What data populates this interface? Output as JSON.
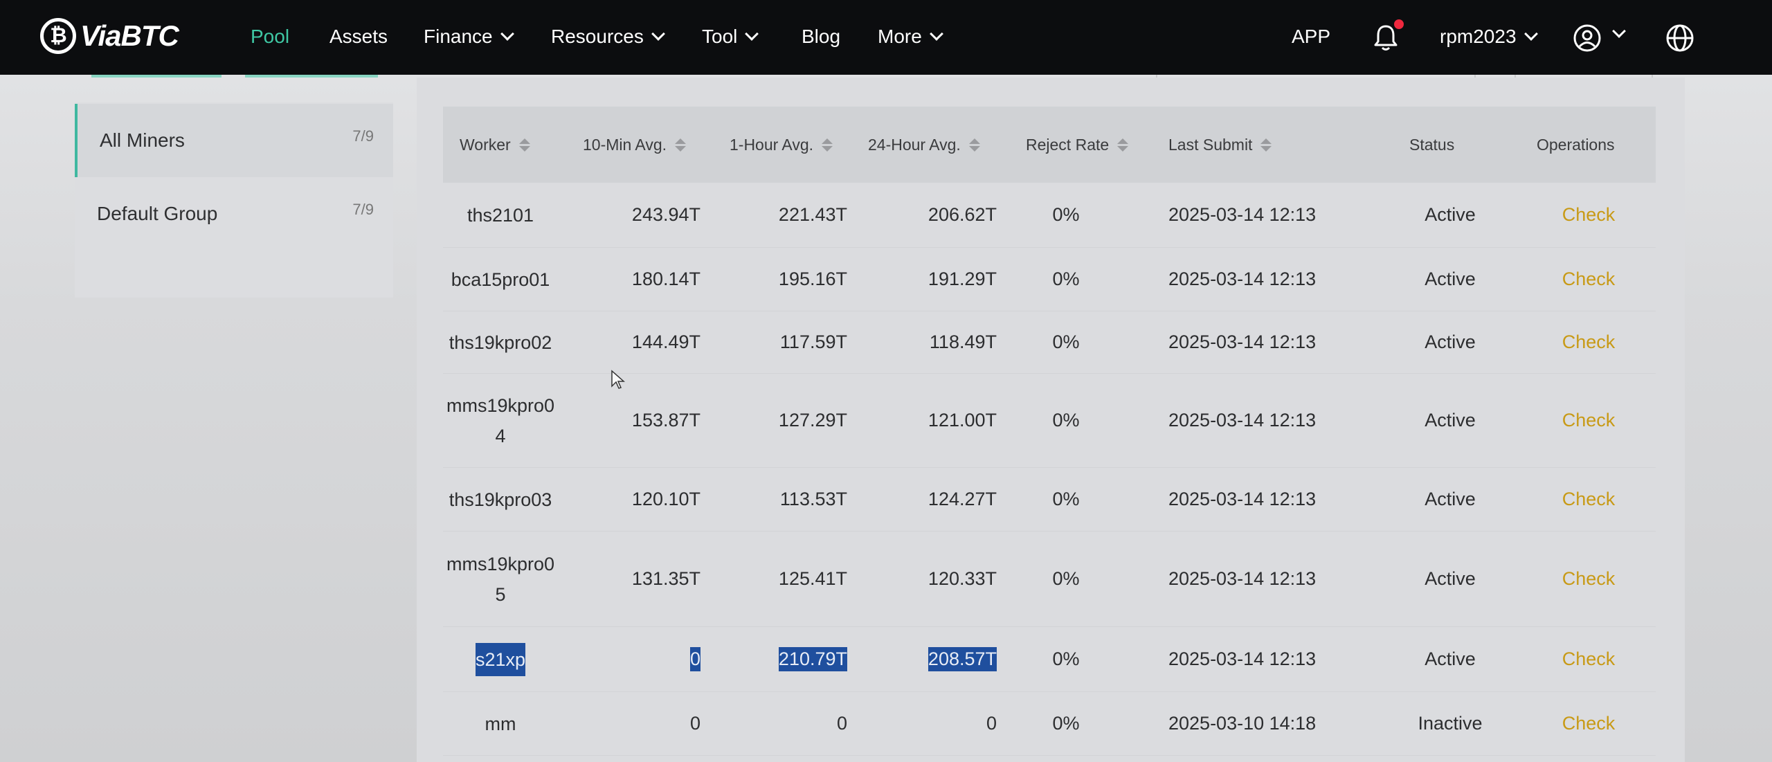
{
  "header": {
    "logo_text": "ViaBTC",
    "nav": [
      {
        "label": "Pool",
        "active": true,
        "dropdown": false
      },
      {
        "label": "Assets",
        "active": false,
        "dropdown": false
      },
      {
        "label": "Finance",
        "active": false,
        "dropdown": true
      },
      {
        "label": "Resources",
        "active": false,
        "dropdown": true
      },
      {
        "label": "Tool",
        "active": false,
        "dropdown": true
      },
      {
        "label": "Blog",
        "active": false,
        "dropdown": false
      },
      {
        "label": "More",
        "active": false,
        "dropdown": true
      }
    ],
    "app_label": "APP",
    "username": "rpm2023",
    "icons": [
      "bell-icon",
      "user-icon",
      "globe-icon"
    ],
    "accent_color": "#3fc8a4",
    "notification_color": "#f0283e"
  },
  "sidebar": {
    "items": [
      {
        "label": "All Miners",
        "count": "7/9",
        "active": true
      },
      {
        "label": "Default Group",
        "count": "7/9",
        "active": false
      }
    ]
  },
  "table": {
    "columns": [
      "Worker",
      "10-Min Avg.",
      "1-Hour Avg.",
      "24-Hour Avg.",
      "Reject Rate",
      "Last Submit",
      "Status",
      "Operations"
    ],
    "rows": [
      {
        "worker": "ths2101",
        "worker_l2": "",
        "m10": "243.94T",
        "h1": "221.43T",
        "h24": "206.62T",
        "reject": "0%",
        "last": "2025-03-14 12:13",
        "status": "Active",
        "op": "Check",
        "highlight": false
      },
      {
        "worker": "bca15pro01",
        "worker_l2": "",
        "m10": "180.14T",
        "h1": "195.16T",
        "h24": "191.29T",
        "reject": "0%",
        "last": "2025-03-14 12:13",
        "status": "Active",
        "op": "Check",
        "highlight": false
      },
      {
        "worker": "ths19kpro02",
        "worker_l2": "",
        "m10": "144.49T",
        "h1": "117.59T",
        "h24": "118.49T",
        "reject": "0%",
        "last": "2025-03-14 12:13",
        "status": "Active",
        "op": "Check",
        "highlight": false
      },
      {
        "worker": "mms19kpro0",
        "worker_l2": "4",
        "m10": "153.87T",
        "h1": "127.29T",
        "h24": "121.00T",
        "reject": "0%",
        "last": "2025-03-14 12:13",
        "status": "Active",
        "op": "Check",
        "highlight": false
      },
      {
        "worker": "ths19kpro03",
        "worker_l2": "",
        "m10": "120.10T",
        "h1": "113.53T",
        "h24": "124.27T",
        "reject": "0%",
        "last": "2025-03-14 12:13",
        "status": "Active",
        "op": "Check",
        "highlight": false
      },
      {
        "worker": "mms19kpro0",
        "worker_l2": "5",
        "m10": "131.35T",
        "h1": "125.41T",
        "h24": "120.33T",
        "reject": "0%",
        "last": "2025-03-14 12:13",
        "status": "Active",
        "op": "Check",
        "highlight": false
      },
      {
        "worker": "s21xp",
        "worker_l2": "",
        "m10": "0",
        "h1": "210.79T",
        "h24": "208.57T",
        "reject": "0%",
        "last": "2025-03-14 12:13",
        "status": "Active",
        "op": "Check",
        "highlight": true
      },
      {
        "worker": "mm",
        "worker_l2": "",
        "m10": "0",
        "h1": "0",
        "h24": "0",
        "reject": "0%",
        "last": "2025-03-10 14:18",
        "status": "Inactive",
        "op": "Check",
        "highlight": false
      }
    ],
    "check_color": "#c89a16",
    "selection_color": "#1f4f9e"
  }
}
